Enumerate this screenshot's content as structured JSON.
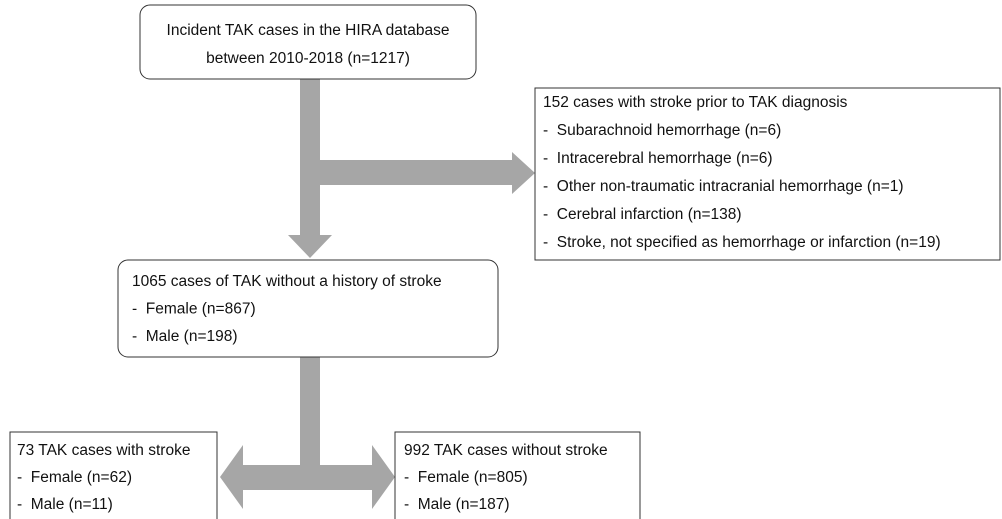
{
  "nodes": [
    {
      "lines": [
        "Incident TAK cases in the HIRA database",
        "between 2010-2018 (n=1217)"
      ]
    },
    {
      "title": "152 cases with stroke prior to TAK diagnosis",
      "items": [
        "-  Subarachnoid hemorrhage (n=6)",
        "-  Intracerebral hemorrhage (n=6)",
        "-  Other non-traumatic intracranial hemorrhage (n=1)",
        "-  Cerebral infarction (n=138)",
        "-  Stroke, not specified as hemorrhage or infarction (n=19)"
      ]
    },
    {
      "title": "1065 cases of TAK without a history of stroke",
      "items": [
        "-  Female (n=867)",
        "-  Male (n=198)"
      ]
    },
    {
      "title": "73 TAK cases with stroke",
      "items": [
        "-  Female (n=62)",
        "-  Male (n=11)"
      ]
    },
    {
      "title": "992 TAK cases without stroke",
      "items": [
        "-  Female (n=805)",
        "-  Male (n=187)"
      ]
    }
  ]
}
